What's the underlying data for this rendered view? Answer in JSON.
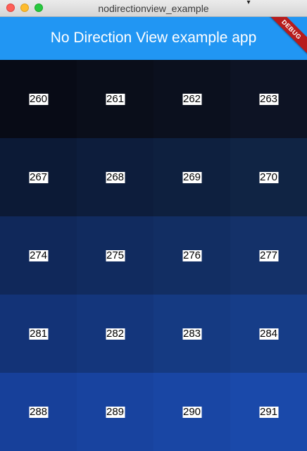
{
  "window": {
    "title": "nodirectionview_example"
  },
  "appbar": {
    "title": "No Direction View example app",
    "color": "#2196f3"
  },
  "debug_banner": {
    "label": "DEBUG",
    "color": "#b71c1c"
  },
  "grid": {
    "rows": [
      {
        "cells": [
          {
            "label": "260",
            "color": "#080b16"
          },
          {
            "label": "261",
            "color": "#0a0e1a"
          },
          {
            "label": "262",
            "color": "#0b101e"
          },
          {
            "label": "263",
            "color": "#0d1324"
          }
        ]
      },
      {
        "cells": [
          {
            "label": "267",
            "color": "#0c1a36"
          },
          {
            "label": "268",
            "color": "#0d1d3c"
          },
          {
            "label": "269",
            "color": "#0e203f"
          },
          {
            "label": "270",
            "color": "#102444"
          }
        ]
      },
      {
        "cells": [
          {
            "label": "274",
            "color": "#10285a"
          },
          {
            "label": "275",
            "color": "#112b5f"
          },
          {
            "label": "276",
            "color": "#122e63"
          },
          {
            "label": "277",
            "color": "#143169"
          }
        ]
      },
      {
        "cells": [
          {
            "label": "281",
            "color": "#133377"
          },
          {
            "label": "282",
            "color": "#14367c"
          },
          {
            "label": "283",
            "color": "#153a82"
          },
          {
            "label": "284",
            "color": "#163d88"
          }
        ]
      },
      {
        "cells": [
          {
            "label": "288",
            "color": "#17409a"
          },
          {
            "label": "289",
            "color": "#18439f"
          },
          {
            "label": "290",
            "color": "#1946a4"
          },
          {
            "label": "291",
            "color": "#1a49aa"
          }
        ]
      }
    ]
  }
}
